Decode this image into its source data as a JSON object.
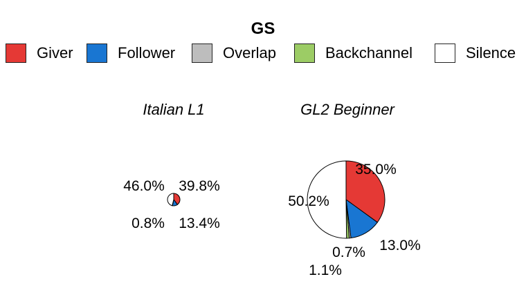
{
  "chart_data": {
    "type": "pie",
    "title": "GS",
    "legend": [
      {
        "name": "Giver",
        "color": "#e53935"
      },
      {
        "name": "Follower",
        "color": "#1976d2"
      },
      {
        "name": "Overlap",
        "color": "#bdbdbd"
      },
      {
        "name": "Backchannel",
        "color": "#9ccc65"
      },
      {
        "name": "Silence",
        "color": "#ffffff"
      }
    ],
    "pies": [
      {
        "name": "Italian L1",
        "categories": [
          "Giver",
          "Follower",
          "Overlap",
          "Backchannel",
          "Silence"
        ],
        "values": [
          39.8,
          13.4,
          0.8,
          0.0,
          46.0
        ],
        "labels": [
          "39.8%",
          "13.4%",
          "0.8%",
          "",
          "46.0%"
        ]
      },
      {
        "name": "GL2 Beginner",
        "categories": [
          "Giver",
          "Follower",
          "Overlap",
          "Backchannel",
          "Silence"
        ],
        "values": [
          35.0,
          13.0,
          0.7,
          1.1,
          50.2
        ],
        "labels": [
          "35.0%",
          "13.0%",
          "0.7%",
          "1.1%",
          "50.2%"
        ]
      }
    ]
  }
}
